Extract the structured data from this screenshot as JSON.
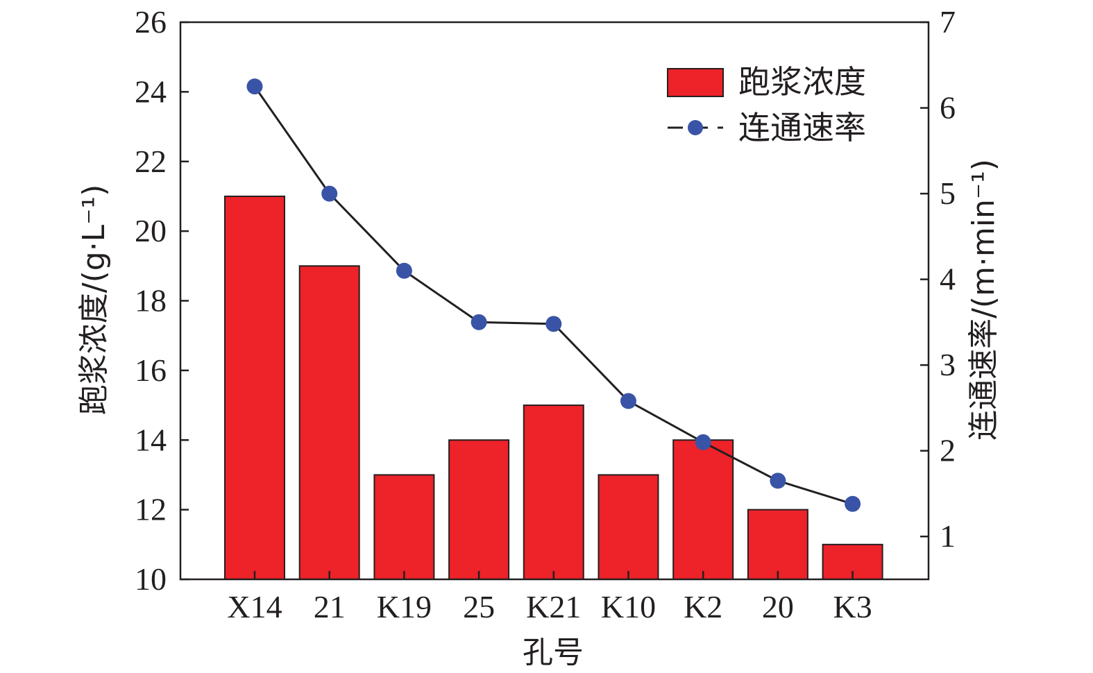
{
  "chart_data": {
    "type": "bar",
    "categories": [
      "X14",
      "21",
      "K19",
      "25",
      "K21",
      "K10",
      "K2",
      "20",
      "K3"
    ],
    "xlabel": "孔号",
    "ylabel_left": "跑浆浓度/(g·L⁻¹)",
    "ylabel_right": "连通速率/(m·min⁻¹)",
    "ylim_left": [
      10,
      26
    ],
    "ylim_right": [
      0.5,
      7
    ],
    "yticks_left": [
      "10",
      "12",
      "14",
      "16",
      "18",
      "20",
      "22",
      "24",
      "26"
    ],
    "yticks_right": [
      "1",
      "2",
      "3",
      "4",
      "5",
      "6",
      "7"
    ],
    "grid": false,
    "legend_position": "top-right",
    "colors": {
      "bar": "#ee2229",
      "line": "#231f20",
      "marker": "#3954a6",
      "axis": "#231f20"
    },
    "series": [
      {
        "name": "跑浆浓度",
        "type": "bar",
        "axis": "left",
        "values": [
          21,
          19,
          13,
          14,
          15,
          13,
          14,
          12,
          11
        ]
      },
      {
        "name": "连通速率",
        "type": "line",
        "axis": "right",
        "values": [
          6.25,
          5.0,
          4.1,
          3.5,
          3.48,
          2.58,
          2.1,
          1.65,
          1.38
        ]
      }
    ]
  }
}
